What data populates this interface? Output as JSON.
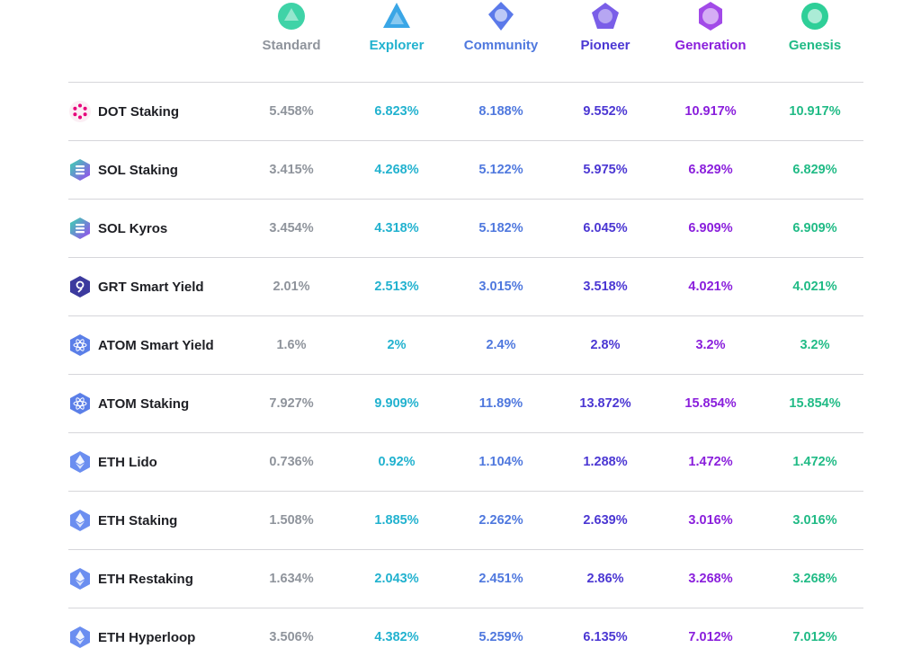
{
  "tiers": [
    {
      "label": "Standard",
      "color": "#8f949c",
      "icon": "standard-tier-icon",
      "icolor": "#3fd3a7"
    },
    {
      "label": "Explorer",
      "color": "#22b2cf",
      "icon": "explorer-tier-icon",
      "icolor": "#3aa6e6"
    },
    {
      "label": "Community",
      "color": "#4f78de",
      "icon": "community-tier-icon",
      "icolor": "#5b79ea"
    },
    {
      "label": "Pioneer",
      "color": "#4b37d3",
      "icon": "pioneer-tier-icon",
      "icolor": "#7a5ee8"
    },
    {
      "label": "Generation",
      "color": "#8a1fdc",
      "icon": "generation-tier-icon",
      "icolor": "#a24ae8"
    },
    {
      "label": "Genesis",
      "color": "#21bb86",
      "icon": "genesis-tier-icon",
      "icolor": "#2fcf98"
    }
  ],
  "rows": [
    {
      "name": "DOT Staking",
      "icon": "polkadot-icon",
      "rates": [
        "5.458%",
        "6.823%",
        "8.188%",
        "9.552%",
        "10.917%",
        "10.917%"
      ]
    },
    {
      "name": "SOL Staking",
      "icon": "solana-icon",
      "rates": [
        "3.415%",
        "4.268%",
        "5.122%",
        "5.975%",
        "6.829%",
        "6.829%"
      ]
    },
    {
      "name": "SOL Kyros",
      "icon": "solana-icon",
      "rates": [
        "3.454%",
        "4.318%",
        "5.182%",
        "6.045%",
        "6.909%",
        "6.909%"
      ]
    },
    {
      "name": "GRT Smart Yield",
      "icon": "graph-icon",
      "rates": [
        "2.01%",
        "2.513%",
        "3.015%",
        "3.518%",
        "4.021%",
        "4.021%"
      ]
    },
    {
      "name": "ATOM Smart Yield",
      "icon": "cosmos-icon",
      "rates": [
        "1.6%",
        "2%",
        "2.4%",
        "2.8%",
        "3.2%",
        "3.2%"
      ]
    },
    {
      "name": "ATOM Staking",
      "icon": "cosmos-icon",
      "rates": [
        "7.927%",
        "9.909%",
        "11.89%",
        "13.872%",
        "15.854%",
        "15.854%"
      ]
    },
    {
      "name": "ETH Lido",
      "icon": "ethereum-icon",
      "rates": [
        "0.736%",
        "0.92%",
        "1.104%",
        "1.288%",
        "1.472%",
        "1.472%"
      ]
    },
    {
      "name": "ETH Staking",
      "icon": "ethereum-icon",
      "rates": [
        "1.508%",
        "1.885%",
        "2.262%",
        "2.639%",
        "3.016%",
        "3.016%"
      ]
    },
    {
      "name": "ETH Restaking",
      "icon": "ethereum-icon",
      "rates": [
        "1.634%",
        "2.043%",
        "2.451%",
        "2.86%",
        "3.268%",
        "3.268%"
      ]
    },
    {
      "name": "ETH Hyperloop",
      "icon": "ethereum-icon",
      "rates": [
        "3.506%",
        "4.382%",
        "5.259%",
        "6.135%",
        "7.012%",
        "7.012%"
      ]
    }
  ]
}
